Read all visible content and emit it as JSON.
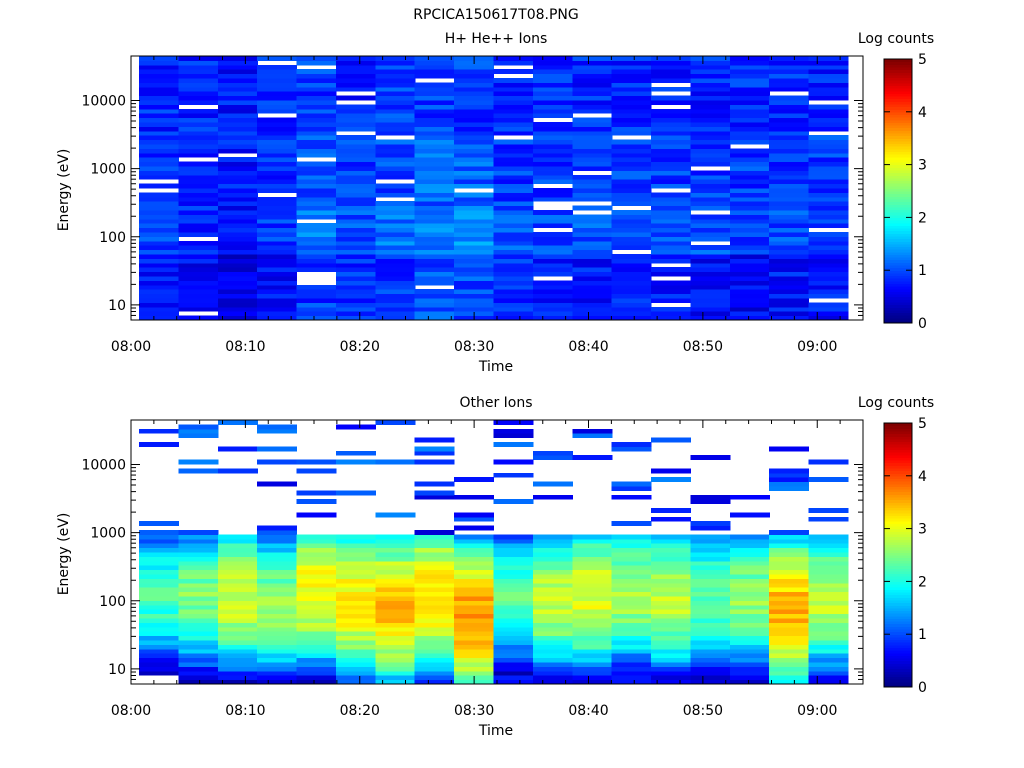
{
  "figure_title": "RPCICA150617T08.PNG",
  "panels": [
    {
      "title": "H+ He++ Ions",
      "xlabel": "Time",
      "ylabel": "Energy (eV)",
      "colorbar_label": "Log counts"
    },
    {
      "title": "Other Ions",
      "xlabel": "Time",
      "ylabel": "Energy (eV)",
      "colorbar_label": "Log counts"
    }
  ],
  "colors": {
    "low": "#00007f",
    "mid": "#7fff7f",
    "high": "#7f0000"
  },
  "chart_data": [
    {
      "type": "heatmap",
      "title": "H+ He++ Ions",
      "xlabel": "Time",
      "ylabel": "Energy (eV)",
      "x_tick_labels": [
        "08:00",
        "08:10",
        "08:20",
        "08:30",
        "08:40",
        "08:50",
        "09:00"
      ],
      "x_range_minutes": [
        0,
        64
      ],
      "y_scale": "log",
      "y_ticks": [
        10,
        100,
        1000,
        10000
      ],
      "y_range": [
        6,
        45000
      ],
      "colorbar": {
        "label": "Log counts",
        "ticks": [
          0,
          1,
          2,
          3,
          4,
          5
        ],
        "range": [
          0,
          5
        ],
        "colormap": "jet"
      },
      "time_bins": [
        "08:00",
        "08:03",
        "08:06",
        "08:10",
        "08:13",
        "08:16",
        "08:19",
        "08:23",
        "08:26",
        "08:29",
        "08:32",
        "08:35",
        "08:39",
        "08:42",
        "08:45",
        "08:48",
        "08:52",
        "08:55"
      ],
      "energy_band_levels_log_counts": [
        {
          "energy_range": "3000-45000",
          "values": [
            0.8,
            0.8,
            0.7,
            0.8,
            0.9,
            0.8,
            0.9,
            0.9,
            0.9,
            0.8,
            0.8,
            0.8,
            0.8,
            0.8,
            0.8,
            0.8,
            0.8,
            0.8
          ]
        },
        {
          "energy_range": "300-3000",
          "values": [
            0.9,
            0.8,
            0.7,
            0.8,
            1.0,
            0.9,
            1.0,
            1.1,
            1.1,
            0.9,
            0.9,
            0.9,
            0.9,
            0.9,
            0.9,
            0.9,
            0.9,
            0.9
          ]
        },
        {
          "energy_range": "60-300",
          "values": [
            0.9,
            0.8,
            0.7,
            0.9,
            1.2,
            1.0,
            1.2,
            1.3,
            1.3,
            1.0,
            1.0,
            1.0,
            1.0,
            1.0,
            1.0,
            0.9,
            1.0,
            1.0
          ]
        },
        {
          "energy_range": "6-60",
          "values": [
            0.7,
            0.6,
            0.5,
            0.7,
            0.9,
            0.8,
            0.9,
            1.0,
            1.0,
            0.8,
            0.7,
            0.7,
            0.7,
            0.7,
            0.6,
            0.6,
            0.7,
            0.7
          ]
        }
      ]
    },
    {
      "type": "heatmap",
      "title": "Other Ions",
      "xlabel": "Time",
      "ylabel": "Energy (eV)",
      "x_tick_labels": [
        "08:00",
        "08:10",
        "08:20",
        "08:30",
        "08:40",
        "08:50",
        "09:00"
      ],
      "x_range_minutes": [
        0,
        64
      ],
      "y_scale": "log",
      "y_ticks": [
        10,
        100,
        1000,
        10000
      ],
      "y_range": [
        6,
        45000
      ],
      "colorbar": {
        "label": "Log counts",
        "ticks": [
          0,
          1,
          2,
          3,
          4,
          5
        ],
        "range": [
          0,
          5
        ],
        "colormap": "jet"
      },
      "time_bins": [
        "08:00",
        "08:03",
        "08:06",
        "08:10",
        "08:13",
        "08:16",
        "08:19",
        "08:23",
        "08:26",
        "08:29",
        "08:32",
        "08:35",
        "08:39",
        "08:42",
        "08:45",
        "08:48",
        "08:52",
        "08:55"
      ],
      "peak_log_counts_by_bin": [
        2.2,
        2.5,
        2.9,
        2.6,
        3.1,
        3.2,
        3.4,
        3.3,
        3.6,
        2.3,
        2.8,
        3.0,
        2.7,
        2.8,
        2.4,
        2.6,
        3.5,
        2.8
      ],
      "peak_energy_eV_by_bin": [
        120,
        110,
        120,
        90,
        140,
        100,
        80,
        120,
        60,
        120,
        110,
        120,
        130,
        110,
        120,
        110,
        70,
        110
      ]
    }
  ]
}
